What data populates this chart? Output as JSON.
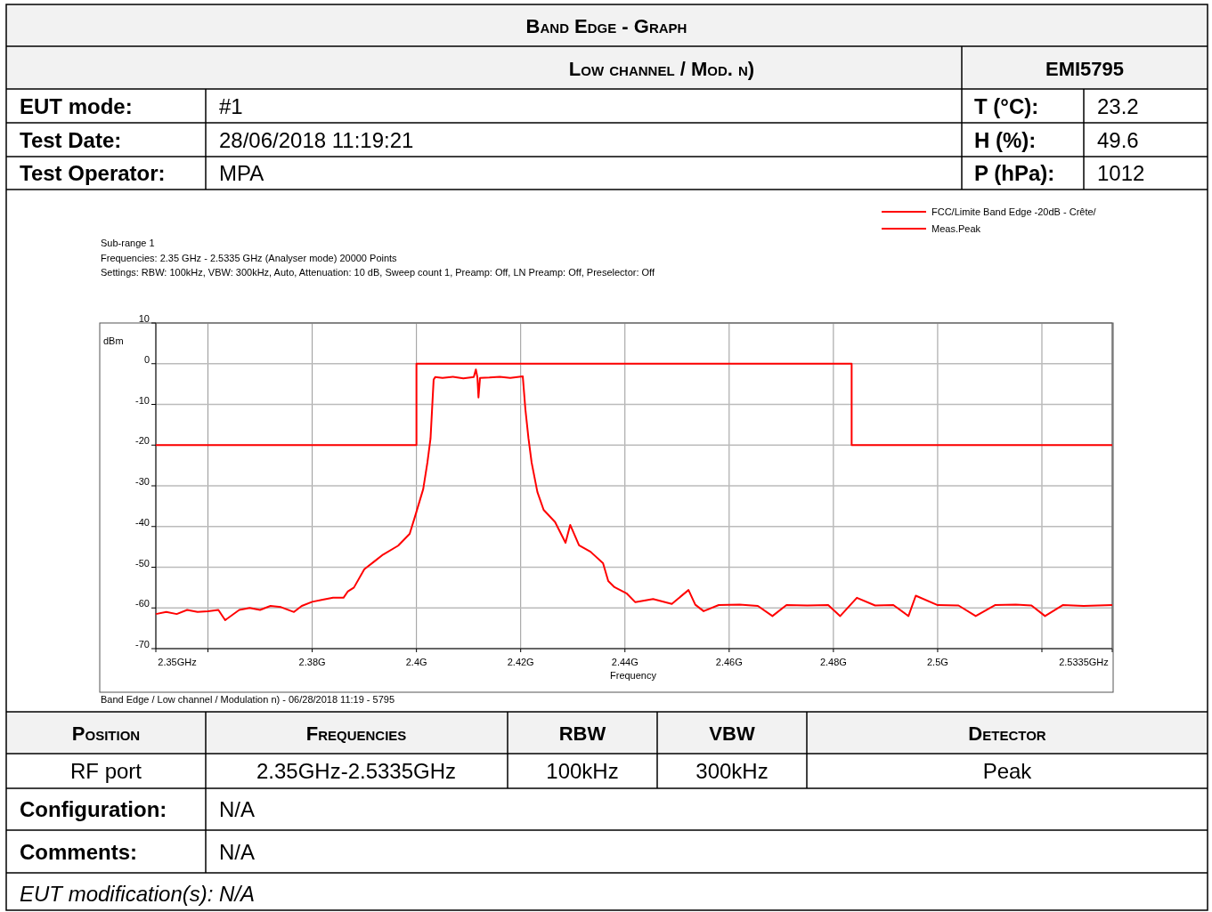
{
  "chart_data": {
    "type": "line",
    "title": "Band Edge - Graph",
    "xlabel": "Frequency",
    "ylabel": "dBm",
    "xlim": [
      2.35,
      2.5335
    ],
    "ylim": [
      -70,
      10
    ],
    "xticks": [
      {
        "value": 2.35,
        "label": "2.35GHz"
      },
      {
        "value": 2.36,
        "label": null
      },
      {
        "value": 2.38,
        "label": "2.38G"
      },
      {
        "value": 2.4,
        "label": "2.4G"
      },
      {
        "value": 2.42,
        "label": "2.42G"
      },
      {
        "value": 2.44,
        "label": "2.44G"
      },
      {
        "value": 2.46,
        "label": "2.46G"
      },
      {
        "value": 2.48,
        "label": "2.48G"
      },
      {
        "value": 2.5,
        "label": "2.5G"
      },
      {
        "value": 2.52,
        "label": null
      },
      {
        "value": 2.5335,
        "label": "2.5335GHz"
      }
    ],
    "yticks": [
      10,
      0,
      -10,
      -20,
      -30,
      -40,
      -50,
      -60,
      -70
    ],
    "grid": true,
    "legend": "top right",
    "line_style": "solid",
    "marker": "none",
    "series": [
      {
        "name": "FCC/Limite Band Edge -20dB - Crête/",
        "color": "#ff0000",
        "x": [
          2.35,
          2.4,
          2.4,
          2.4835,
          2.4835,
          2.5335
        ],
        "values": [
          -20,
          -20,
          0,
          0,
          -20,
          -20
        ]
      },
      {
        "name": "Meas.Peak",
        "color": "#ff0000",
        "x": [
          2.35,
          2.352,
          2.354,
          2.356,
          2.358,
          2.36,
          2.362,
          2.3633,
          2.366,
          2.368,
          2.37,
          2.372,
          2.374,
          2.3765,
          2.378,
          2.38,
          2.382,
          2.384,
          2.386,
          2.3868,
          2.388,
          2.39,
          2.392,
          2.3936,
          2.3965,
          2.3987,
          2.3999,
          2.4013,
          2.4021,
          2.4027,
          2.4033,
          2.4036,
          2.405,
          2.407,
          2.409,
          2.411,
          2.4114,
          2.4117,
          2.4119,
          2.4122,
          2.414,
          2.416,
          2.418,
          2.4204,
          2.4209,
          2.4215,
          2.4221,
          2.4232,
          2.4244,
          2.4266,
          2.4286,
          2.4295,
          2.4312,
          2.4334,
          2.4358,
          2.4368,
          2.438,
          2.4403,
          2.442,
          2.4454,
          2.449,
          2.4522,
          2.4535,
          2.4551,
          2.458,
          2.462,
          2.4655,
          2.4683,
          2.471,
          2.475,
          2.479,
          2.4813,
          2.4845,
          2.488,
          2.4915,
          2.4944,
          2.4958,
          2.5,
          2.504,
          2.5073,
          2.511,
          2.515,
          2.518,
          2.5206,
          2.524,
          2.528,
          2.5335
        ],
        "values": [
          -61.5,
          -61,
          -61.5,
          -60.5,
          -61,
          -60.8,
          -60.5,
          -63,
          -60.5,
          -60,
          -60.5,
          -59.5,
          -59.8,
          -61,
          -59.5,
          -58.5,
          -58,
          -57.5,
          -57.5,
          -56,
          -55,
          -50.5,
          -48.5,
          -46.9,
          -44.7,
          -41.8,
          -36.8,
          -30.8,
          -24.3,
          -18.4,
          -3.9,
          -3.3,
          -3.5,
          -3.2,
          -3.6,
          -3.3,
          -1.4,
          -3.4,
          -8.3,
          -3.5,
          -3.4,
          -3.2,
          -3.5,
          -3.1,
          -11.2,
          -18.4,
          -24.3,
          -31.5,
          -35.9,
          -38.9,
          -44,
          -39.6,
          -44.6,
          -46.2,
          -49,
          -53.4,
          -54.9,
          -56.4,
          -58.6,
          -57.8,
          -59,
          -55.6,
          -59.2,
          -60.8,
          -59.3,
          -59.2,
          -59.5,
          -62,
          -59.3,
          -59.4,
          -59.3,
          -62,
          -57.5,
          -59.4,
          -59.3,
          -62,
          -57,
          -59.3,
          -59.4,
          -62,
          -59.3,
          -59.2,
          -59.4,
          -62,
          -59.3,
          -59.5,
          -59.3
        ]
      }
    ],
    "annotations": [
      "Low channel / Mod. n)",
      "EMI5795",
      "EUT mode:",
      "#1",
      "T (°C):",
      "23.2",
      "Test Date:",
      "28/06/2018 11:19:21",
      "H (%):",
      "49.6",
      "Test Operator:",
      "MPA",
      "P (hPa):",
      "1012",
      "Sub-range 1",
      "Frequencies: 2.35 GHz - 2.5335 GHz (Analyser mode) 20000 Points",
      "Settings: RBW: 100kHz, VBW: 300kHz, Auto, Attenuation: 10 dB, Sweep count 1, Preamp: Off, LN Preamp: Off, Preselector: Off",
      "Band Edge / Low channel / Modulation n)  -  06/28/2018 11:19  -  5795",
      "Position",
      "Frequencies",
      "RBW",
      "VBW",
      "Detector",
      "RF port",
      "2.35GHz-2.5335GHz",
      "100kHz",
      "300kHz",
      "Peak",
      "Configuration:",
      "N/A",
      "Comments:",
      "N/A",
      "EUT modification(s): N/A"
    ]
  }
}
